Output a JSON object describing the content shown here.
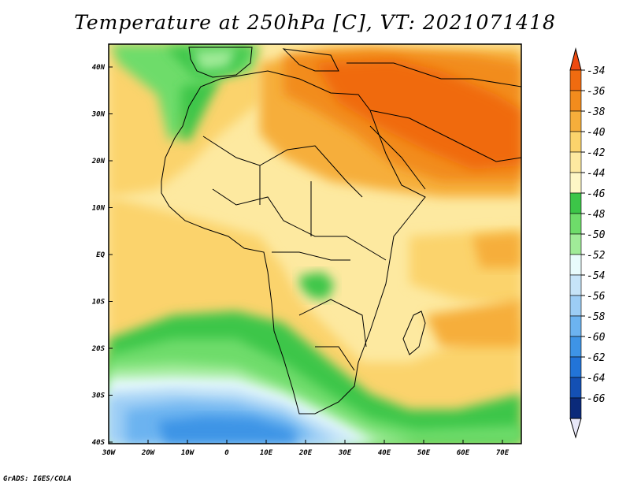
{
  "title": "Temperature at 250hPa [C], VT: 2021071418",
  "credit": "GrADS: IGES/COLA",
  "map": {
    "lat_ticks": [
      "40N",
      "30N",
      "20N",
      "10N",
      "EQ",
      "10S",
      "20S",
      "30S",
      "40S"
    ],
    "lon_ticks": [
      "30W",
      "20W",
      "10W",
      "0",
      "10E",
      "20E",
      "30E",
      "40E",
      "50E",
      "60E",
      "70E"
    ]
  },
  "colorbar": {
    "levels": [
      "-34",
      "-36",
      "-38",
      "-40",
      "-42",
      "-44",
      "-46",
      "-48",
      "-50",
      "-52",
      "-54",
      "-56",
      "-58",
      "-60",
      "-62",
      "-64",
      "-66"
    ],
    "colors": [
      "#f06b10",
      "#f28c1d",
      "#f6ae3b",
      "#fbd36c",
      "#fde9a0",
      "#fef7c6",
      "#3cc648",
      "#6edc6a",
      "#a0eb98",
      "#e8fbfc",
      "#c6e4f8",
      "#9ccdf5",
      "#6cb3f0",
      "#3e94e6",
      "#2274d8",
      "#1450b4",
      "#0b2a7a"
    ],
    "top_cap_color": "#ee4a10",
    "bottom_cap_color": "#e8e8f8"
  }
}
